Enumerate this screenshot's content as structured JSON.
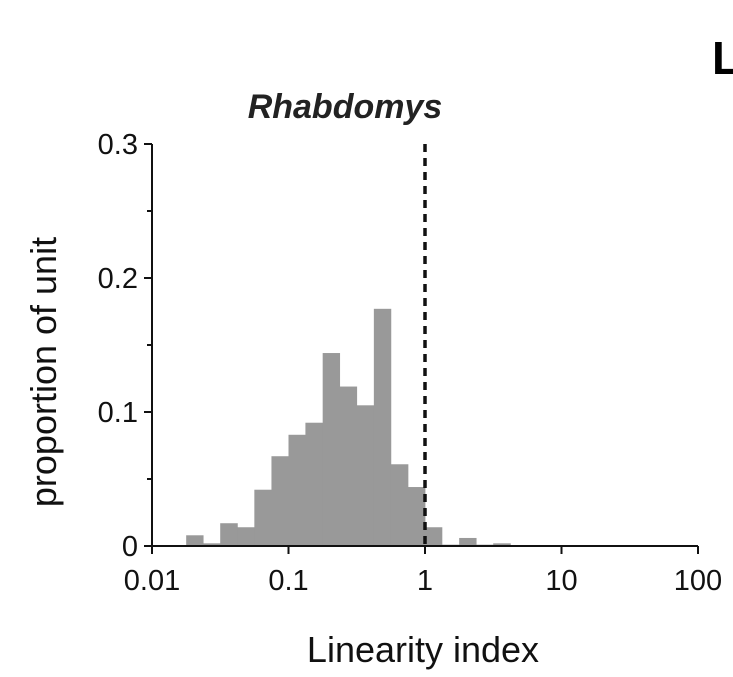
{
  "panel_letter": "L",
  "chart_data": {
    "type": "bar",
    "title": "Rhabdomys",
    "xlabel": "Linearity index",
    "ylabel": "proportion of unit",
    "x_scale": "log",
    "xlim": [
      0.01,
      100
    ],
    "ylim": [
      0,
      0.3
    ],
    "x_ticks": [
      0.01,
      0.1,
      1,
      10,
      100
    ],
    "x_tick_labels": [
      "0.01",
      "0.1",
      "1",
      "10",
      "100"
    ],
    "y_ticks": [
      0,
      0.1,
      0.2,
      0.3
    ],
    "y_tick_labels": [
      "0",
      "0.1",
      "0.2",
      "0.3"
    ],
    "y_minor_ticks": [
      0.05,
      0.15,
      0.25
    ],
    "bin_edges": [
      0.01,
      0.0133,
      0.0178,
      0.0237,
      0.0316,
      0.0422,
      0.0562,
      0.075,
      0.1,
      0.133,
      0.178,
      0.237,
      0.316,
      0.422,
      0.562,
      0.75,
      1,
      1.33,
      1.78,
      2.37,
      3.16,
      4.22,
      5.62,
      7.5,
      10
    ],
    "values": [
      0,
      0,
      0.008,
      0.002,
      0.017,
      0.014,
      0.042,
      0.067,
      0.083,
      0.092,
      0.144,
      0.119,
      0.105,
      0.177,
      0.061,
      0.044,
      0.014,
      0.001,
      0.006,
      0.001,
      0.002,
      0,
      0,
      0
    ],
    "bar_color": "#999999",
    "reference_line": {
      "x": 1,
      "style": "dashed",
      "color": "#111111"
    },
    "grid": false,
    "legend": "none"
  }
}
